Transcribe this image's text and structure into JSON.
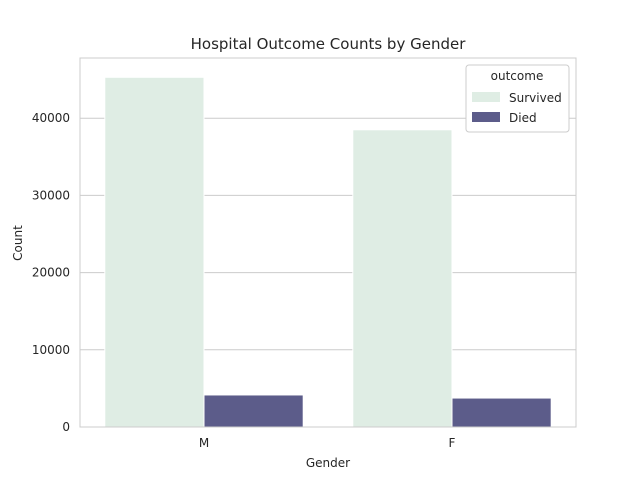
{
  "chart_data": {
    "type": "bar",
    "title": "Hospital Outcome Counts by Gender",
    "xlabel": "Gender",
    "ylabel": "Count",
    "categories": [
      "M",
      "F"
    ],
    "series": [
      {
        "name": "Survived",
        "values": [
          45300,
          38500
        ],
        "color": "#dfede4"
      },
      {
        "name": "Died",
        "values": [
          4150,
          3750
        ],
        "color": "#5c5c8a"
      }
    ],
    "ylim": [
      0,
      47800
    ],
    "yticks": [
      0,
      10000,
      20000,
      30000,
      40000
    ],
    "grid": true,
    "legend": {
      "title": "outcome",
      "placement": "top-right"
    },
    "colors": {
      "grid": "#cccccc",
      "axes_edge": "#cccccc",
      "text": "#262626"
    }
  }
}
